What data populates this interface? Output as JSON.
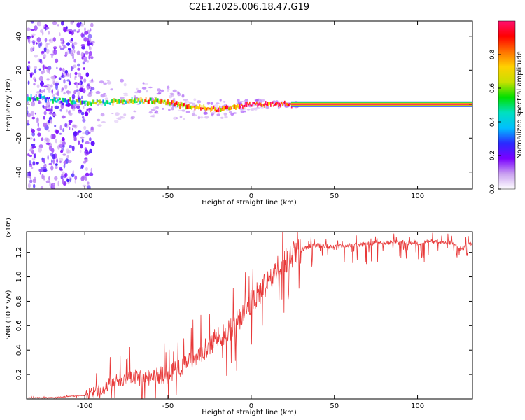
{
  "title": "C2E1.2025.006.18.47.G19",
  "colors": {
    "snr_line": "#e83a3a",
    "ridge_core": "#e8102a",
    "axis": "#000000"
  },
  "colorbar": {
    "label": "Normalized spectral amplitude",
    "ticks": [
      "0.0",
      "0.2",
      "0.4",
      "0.6",
      "0.8"
    ],
    "range": [
      0,
      1
    ],
    "colormap": [
      "#ffffff",
      "#c9a0f0",
      "#7a00ff",
      "#2a2aff",
      "#00bfff",
      "#00e0c0",
      "#00e000",
      "#c8e000",
      "#ffd000",
      "#ff7000",
      "#ff0000",
      "#ff1070"
    ]
  },
  "chart_data": [
    {
      "type": "heatmap",
      "title": "",
      "xlabel": "Height of straight line (km)",
      "ylabel": "Frequency (Hz)",
      "xlim": [
        -135,
        133
      ],
      "ylim": [
        -50,
        49
      ],
      "x_ticks": [
        -100,
        -50,
        0,
        50,
        100
      ],
      "x_tick_labels": [
        "-100",
        "-50",
        "0",
        "50",
        "100"
      ],
      "y_ticks": [
        -40,
        -20,
        0,
        20,
        40
      ],
      "y_tick_labels": [
        "-40",
        "-20",
        "0",
        "20",
        "40"
      ],
      "ridge": {
        "x": [
          -135,
          -110,
          -100,
          -90,
          -80,
          -70,
          -60,
          -50,
          -40,
          -30,
          -20,
          -10,
          0,
          10,
          20,
          30,
          60,
          100,
          133
        ],
        "freq": [
          4,
          2,
          1,
          1,
          2,
          2,
          2,
          1,
          -1,
          -2,
          -3,
          -2,
          0,
          0,
          0,
          0,
          0,
          0,
          0
        ],
        "amplitude": [
          0.3,
          0.4,
          0.45,
          0.5,
          0.6,
          0.65,
          0.7,
          0.75,
          0.78,
          0.8,
          0.82,
          0.85,
          0.88,
          0.9,
          0.95,
          1.0,
          1.0,
          1.0,
          1.0
        ]
      },
      "noise_region_x": [
        -135,
        -95
      ]
    },
    {
      "type": "line",
      "title": "",
      "xlabel": "Height of straight line (km)",
      "ylabel": "SNR (10 * v/v)",
      "y_multiplier": "(x10⁴)",
      "xlim": [
        -135,
        133
      ],
      "ylim": [
        0,
        1.37
      ],
      "x_ticks": [
        -100,
        -50,
        0,
        50,
        100
      ],
      "x_tick_labels": [
        "-100",
        "-50",
        "0",
        "50",
        "100"
      ],
      "y_ticks": [
        0.2,
        0.4,
        0.6,
        0.8,
        1.0,
        1.2
      ],
      "y_tick_labels": [
        "0.2",
        "0.4",
        "0.6",
        "0.8",
        "1.0",
        "1.2"
      ],
      "series": [
        {
          "x": [
            -135,
            -120,
            -110,
            -100,
            -95,
            -90,
            -85,
            -80,
            -75,
            -70,
            -65,
            -60,
            -55,
            -50,
            -45,
            -40,
            -35,
            -30,
            -25,
            -20,
            -15,
            -10,
            -5,
            0,
            5,
            10,
            15,
            20,
            25,
            30,
            35,
            40,
            45,
            50,
            60,
            70,
            80,
            90,
            100,
            110,
            120,
            125,
            133
          ],
          "y": [
            0.01,
            0.01,
            0.02,
            0.03,
            0.05,
            0.08,
            0.12,
            0.15,
            0.17,
            0.18,
            0.17,
            0.18,
            0.2,
            0.2,
            0.24,
            0.28,
            0.33,
            0.38,
            0.45,
            0.5,
            0.55,
            0.6,
            0.7,
            0.8,
            0.87,
            0.95,
            1.05,
            1.12,
            1.18,
            1.22,
            1.25,
            1.26,
            1.25,
            1.24,
            1.26,
            1.27,
            1.28,
            1.28,
            1.28,
            1.29,
            1.28,
            1.22,
            1.28
          ]
        }
      ]
    }
  ]
}
